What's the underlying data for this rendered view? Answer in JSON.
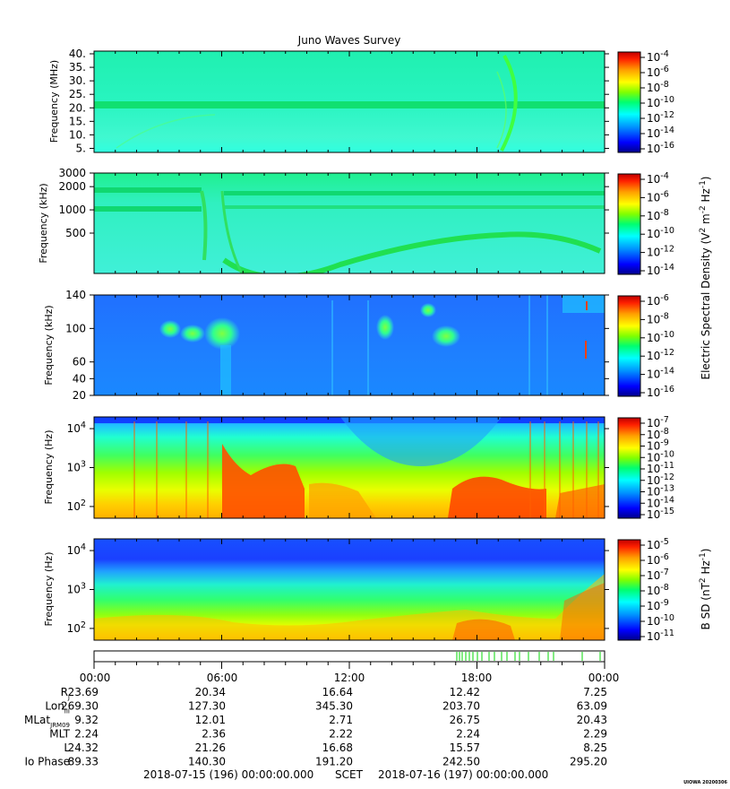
{
  "title": "Juno Waves Survey",
  "chart_data": [
    {
      "type": "heatmap",
      "id": "hfwbr",
      "ylabel": "Frequency (MHz)",
      "yscale": "linear",
      "ylim": [
        3.5,
        41
      ],
      "yticks": [
        5,
        10,
        15,
        20,
        25,
        30,
        35,
        40
      ],
      "yticklabels": [
        "5.",
        "10.",
        "15.",
        "20.",
        "25.",
        "30.",
        "35.",
        "40."
      ],
      "colorbar_ticks": [
        "10^-4",
        "10^-6",
        "10^-8",
        "10^-10",
        "10^-12",
        "10^-14",
        "10^-16"
      ]
    },
    {
      "type": "heatmap",
      "id": "hflbr",
      "ylabel": "Frequency (kHz)",
      "yscale": "log",
      "ylim": [
        150,
        3000
      ],
      "yticks": [
        500,
        1000,
        2000,
        3000
      ],
      "yticklabels": [
        "500",
        "1000",
        "2000",
        "3000"
      ],
      "colorbar_ticks": [
        "10^-4",
        "10^-6",
        "10^-8",
        "10^-10",
        "10^-12",
        "10^-14"
      ]
    },
    {
      "type": "heatmap",
      "id": "lfrhi",
      "ylabel": "Frequency (kHz)",
      "yscale": "linear",
      "ylim": [
        20,
        140
      ],
      "yticks": [
        20,
        40,
        60,
        100,
        140
      ],
      "yticklabels": [
        "20",
        "40",
        "60",
        "100",
        "140"
      ],
      "colorbar_ticks": [
        "10^-6",
        "10^-8",
        "10^-10",
        "10^-12",
        "10^-14",
        "10^-16"
      ]
    },
    {
      "type": "heatmap",
      "id": "lfrlo",
      "ylabel": "Frequency (Hz)",
      "yscale": "log",
      "ylim": [
        50,
        20000
      ],
      "yticks": [
        100,
        1000,
        10000
      ],
      "yticklabels": [
        "10^2",
        "10^3",
        "10^4"
      ],
      "colorbar_ticks": [
        "10^-7",
        "10^-8",
        "10^-9",
        "10^-10",
        "10^-11",
        "10^-12",
        "10^-13",
        "10^-14",
        "10^-15"
      ]
    },
    {
      "type": "heatmap",
      "id": "bsd",
      "ylabel": "Frequency (Hz)",
      "yscale": "log",
      "ylim": [
        50,
        20000
      ],
      "yticks": [
        100,
        1000,
        10000
      ],
      "yticklabels": [
        "10^2",
        "10^3",
        "10^4"
      ],
      "colorbar_ticks": [
        "10^-5",
        "10^-6",
        "10^-7",
        "10^-8",
        "10^-9",
        "10^-10",
        "10^-11"
      ]
    }
  ],
  "colorbar_label_e": "Electric Spectral Density (V^2 m^-2 Hz^-1)",
  "colorbar_label_b": "B SD (nT^2 Hz^-1)",
  "colors": {
    "scale": [
      "#00008b",
      "#0000ff",
      "#0080ff",
      "#00ffff",
      "#00ff80",
      "#80ff00",
      "#ffff00",
      "#ffa000",
      "#ff0000",
      "#b00000"
    ]
  },
  "time_axis": {
    "ticks": [
      "00:00",
      "06:00",
      "12:00",
      "18:00",
      "00:00"
    ]
  },
  "ephemeris": [
    {
      "label": "R",
      "sub": "J",
      "values": [
        "23.69",
        "20.34",
        "16.64",
        "12.42",
        "7.25"
      ]
    },
    {
      "label": "Lon",
      "sub": "III",
      "values": [
        "269.30",
        "127.30",
        "345.30",
        "203.70",
        "63.09"
      ]
    },
    {
      "label": "MLat",
      "sub": "JRM09",
      "values": [
        "9.32",
        "12.01",
        "2.71",
        "26.75",
        "20.43"
      ]
    },
    {
      "label": "MLT",
      "sub": "",
      "values": [
        "2.24",
        "2.36",
        "2.22",
        "2.24",
        "2.29"
      ]
    },
    {
      "label": "L",
      "sub": "",
      "values": [
        "24.32",
        "21.26",
        "16.68",
        "15.57",
        "8.25"
      ]
    },
    {
      "label": "Io Phase",
      "sub": "",
      "values": [
        "89.33",
        "140.30",
        "191.20",
        "242.50",
        "295.20"
      ]
    }
  ],
  "footer": {
    "start": "2018-07-15 (196) 00:00:00.000",
    "scet": "SCET",
    "end": "2018-07-16 (197) 00:00:00.000"
  },
  "credit": "UIOWA 20200306"
}
